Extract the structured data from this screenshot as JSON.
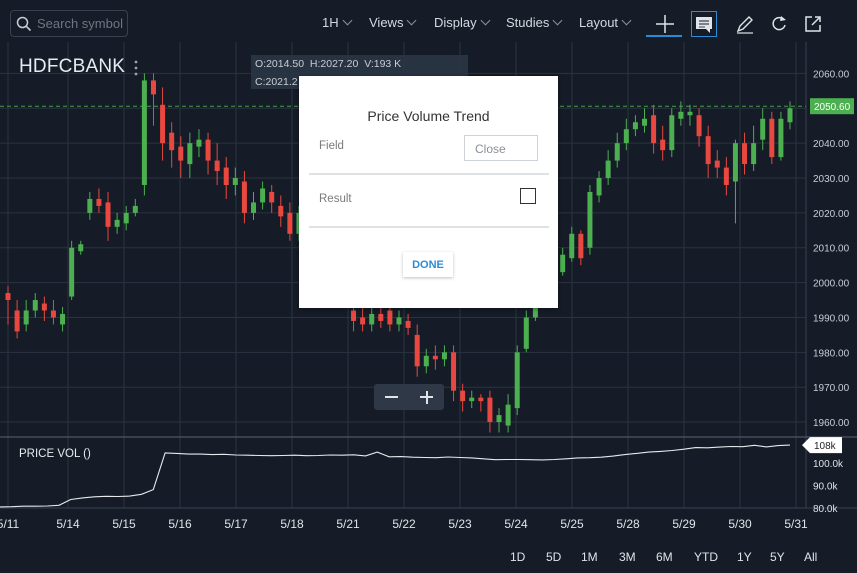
{
  "toolbar": {
    "search_placeholder": "Search symbol",
    "interval": "1H",
    "views": "Views",
    "display": "Display",
    "studies": "Studies",
    "layout": "Layout",
    "accent_color": "#2a8cd5"
  },
  "symbol": "HDFCBANK",
  "ohlc": {
    "open_label": "O:",
    "open": "2014.50",
    "high_label": "H:",
    "high": "2027.20",
    "volume_label": "V:",
    "volume": "193 K",
    "close_label": "C:",
    "close": "2021.2"
  },
  "dialog": {
    "title": "Price Volume Trend",
    "field_label": "Field",
    "field_value": "Close",
    "result_label": "Result",
    "result_checked": false,
    "done_label": "DONE"
  },
  "study_panel": {
    "label": "PRICE VOL ()",
    "current_badge": "108k"
  },
  "chart_data": {
    "type": "candlestick",
    "symbol": "HDFCBANK",
    "interval": "1H",
    "current_price_badge": "2050.60",
    "price_axis_ticks": [
      "2060.00",
      "2050.00",
      "2040.00",
      "2030.00",
      "2020.00",
      "2010.00",
      "2000.00",
      "1990.00",
      "1980.00",
      "1970.00",
      "1960.00"
    ],
    "price_axis_values": [
      2060,
      2050,
      2040,
      2030,
      2020,
      2010,
      2000,
      1990,
      1980,
      1970,
      1960
    ],
    "volume_axis_ticks": [
      "100.0k",
      "90.0k",
      "80.0k"
    ],
    "volume_axis_values": [
      100000,
      90000,
      80000
    ],
    "x_labels": [
      "5/11",
      "5/14",
      "5/15",
      "5/16",
      "5/17",
      "5/18",
      "5/21",
      "5/22",
      "5/23",
      "5/24",
      "5/25",
      "5/28",
      "5/29",
      "5/30",
      "5/31"
    ],
    "ylim": [
      1956,
      2065
    ],
    "colors": {
      "up": "#4caf50",
      "down": "#e8483f",
      "background": "#151c27",
      "grid": "#2a3340",
      "pvt_line": "#e6e9ed"
    },
    "candles": [
      [
        1997,
        1995,
        1999,
        1988
      ],
      [
        1992,
        1986,
        1995,
        1984
      ],
      [
        1988,
        1992,
        1995,
        1986
      ],
      [
        1992,
        1995,
        1997,
        1990
      ],
      [
        1994,
        1992,
        1996,
        1989
      ],
      [
        1992,
        1990,
        1995,
        1988
      ],
      [
        1988,
        1991,
        1993,
        1986
      ],
      [
        1996,
        2010,
        2012,
        1995
      ],
      [
        2009,
        2011,
        2012,
        2008
      ],
      [
        2020,
        2024,
        2026,
        2018
      ],
      [
        2024,
        2022,
        2027,
        2020
      ],
      [
        2023,
        2016,
        2026,
        2012
      ],
      [
        2016,
        2018,
        2020,
        2014
      ],
      [
        2017,
        2020,
        2022,
        2015
      ],
      [
        2020,
        2022,
        2024,
        2019
      ],
      [
        2028,
        2058,
        2060,
        2025
      ],
      [
        2058,
        2054,
        2060,
        2045
      ],
      [
        2051,
        2040,
        2056,
        2035
      ],
      [
        2043,
        2038,
        2046,
        2033
      ],
      [
        2039,
        2035,
        2042,
        2030
      ],
      [
        2034,
        2040,
        2043,
        2030
      ],
      [
        2039,
        2041,
        2044,
        2036
      ],
      [
        2041,
        2035,
        2043,
        2031
      ],
      [
        2035,
        2032,
        2040,
        2028
      ],
      [
        2033,
        2028,
        2036,
        2024
      ],
      [
        2028,
        2030,
        2033,
        2025
      ],
      [
        2029,
        2020,
        2032,
        2017
      ],
      [
        2020,
        2023,
        2026,
        2018
      ],
      [
        2023,
        2027,
        2029,
        2021
      ],
      [
        2026,
        2023,
        2028,
        2020
      ],
      [
        2022,
        2019,
        2025,
        2016
      ],
      [
        2020,
        2014,
        2023,
        2012
      ],
      [
        2014,
        2020,
        2022,
        2012
      ],
      [
        2020,
        2014,
        2022,
        2012
      ],
      [
        2014,
        2021,
        2024,
        2012
      ],
      [
        2021,
        2018,
        2025,
        2015
      ],
      [
        2018,
        2042,
        2046,
        2016
      ],
      [
        2012,
        2001,
        2015,
        1998
      ],
      [
        1992,
        1989,
        1995,
        1986
      ],
      [
        1990,
        1988,
        1993,
        1986
      ],
      [
        1988,
        1991,
        1993,
        1986
      ],
      [
        1991,
        1989,
        1994,
        1987
      ],
      [
        1992,
        1988,
        1994,
        1986
      ],
      [
        1988,
        1990,
        1992,
        1986
      ],
      [
        1989,
        1987,
        1991,
        1985
      ],
      [
        1985,
        1976,
        1988,
        1973
      ],
      [
        1976,
        1979,
        1981,
        1974
      ],
      [
        1979,
        1978,
        1982,
        1975
      ],
      [
        1978,
        1980,
        1982,
        1976
      ],
      [
        1980,
        1969,
        1982,
        1966
      ],
      [
        1969,
        1966,
        1971,
        1963
      ],
      [
        1966,
        1967,
        1969,
        1964
      ],
      [
        1967,
        1966,
        1968,
        1963
      ],
      [
        1967,
        1960,
        1969,
        1957
      ],
      [
        1960,
        1962,
        1964,
        1957
      ],
      [
        1959,
        1965,
        1968,
        1957
      ],
      [
        1964,
        1980,
        1982,
        1962
      ],
      [
        1981,
        1990,
        1992,
        1980
      ],
      [
        1990,
        2002,
        2004,
        1989
      ],
      [
        2002,
        2000,
        2004,
        1998
      ],
      [
        2001,
        2004,
        2006,
        1999
      ],
      [
        2003,
        2008,
        2010,
        2002
      ],
      [
        2007,
        2014,
        2016,
        2006
      ],
      [
        2014,
        2007,
        2015,
        2005
      ],
      [
        2010,
        2026,
        2028,
        2008
      ],
      [
        2025,
        2030,
        2032,
        2023
      ],
      [
        2030,
        2035,
        2038,
        2028
      ],
      [
        2035,
        2040,
        2043,
        2033
      ],
      [
        2040,
        2044,
        2047,
        2038
      ],
      [
        2044,
        2046,
        2048,
        2042
      ],
      [
        2045,
        2047,
        2050,
        2043
      ],
      [
        2048,
        2040,
        2051,
        2037
      ],
      [
        2041,
        2038,
        2045,
        2035
      ],
      [
        2038,
        2048,
        2050,
        2036
      ],
      [
        2047,
        2049,
        2052,
        2045
      ],
      [
        2048,
        2049,
        2051,
        2045
      ],
      [
        2048,
        2042,
        2050,
        2039
      ],
      [
        2042,
        2034,
        2045,
        2030
      ],
      [
        2035,
        2033,
        2038,
        2030
      ],
      [
        2033,
        2028,
        2036,
        2025
      ],
      [
        2029,
        2040,
        2041,
        2017
      ],
      [
        2040,
        2034,
        2043,
        2031
      ],
      [
        2034,
        2040,
        2045,
        2032
      ],
      [
        2041,
        2047,
        2050,
        2038
      ],
      [
        2047,
        2036,
        2049,
        2034
      ],
      [
        2036,
        2047,
        2049,
        2035
      ],
      [
        2046,
        2050,
        2052,
        2044
      ]
    ],
    "pvt_series_k": [
      80.5,
      80.6,
      80.8,
      80.8,
      80.9,
      81.2,
      83.8,
      84.5,
      85,
      85.2,
      85.1,
      85.3,
      86.1,
      88.2,
      104.5,
      104.3,
      104,
      104,
      103.8,
      103.9,
      103.6,
      103.5,
      103.4,
      103.3,
      103.4,
      103.5,
      103.3,
      103.4,
      103.6,
      103.5,
      103.7,
      103.2,
      104.9,
      102.8,
      102.9,
      102.6,
      102.5,
      102.4,
      102.7,
      102.5,
      102.3,
      101.9,
      101.5,
      101.6,
      101.6,
      101.5,
      101.4,
      101.6,
      101.9,
      102.3,
      102.4,
      102.6,
      103.1,
      103.8,
      104.3,
      104.9,
      105.2,
      105.6,
      106.2,
      106.9,
      106.8,
      107.1,
      107.4,
      107.3,
      107.9,
      107.2,
      107.8,
      108
    ]
  },
  "time_ranges": [
    "1D",
    "5D",
    "1M",
    "3M",
    "6M",
    "YTD",
    "1Y",
    "5Y",
    "All"
  ]
}
